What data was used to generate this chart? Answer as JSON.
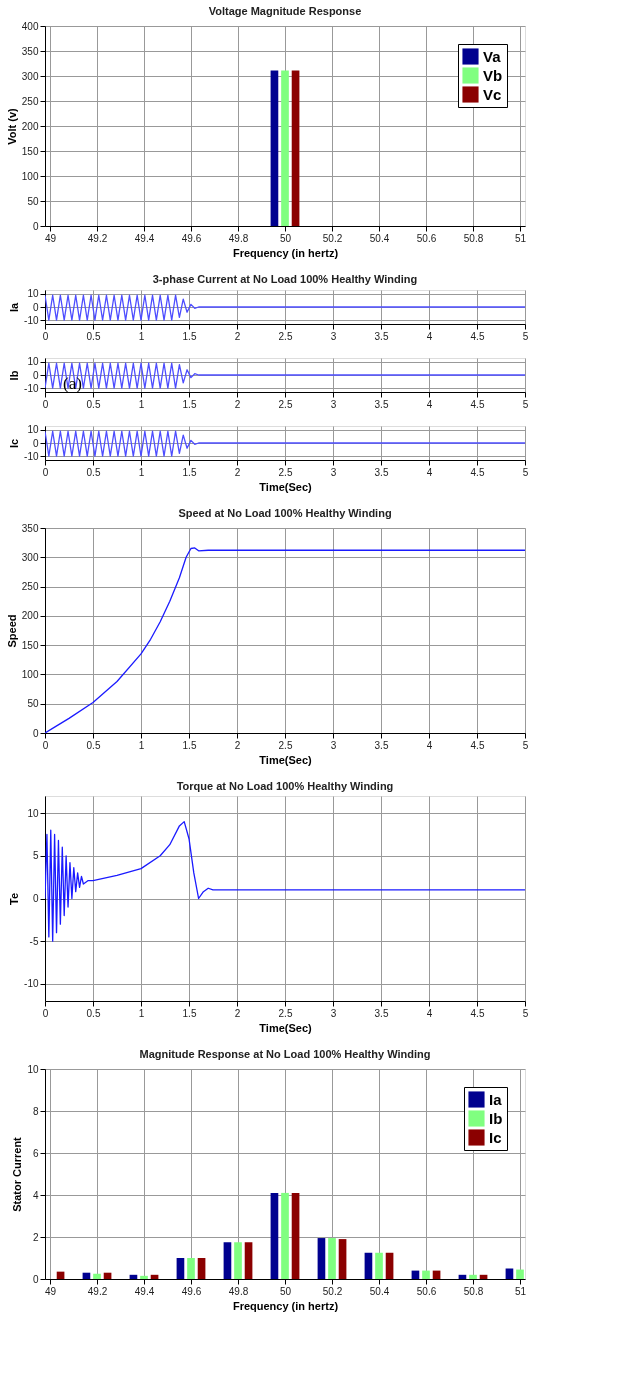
{
  "chart_data": [
    {
      "type": "bar",
      "title": "Voltage Magnitude Response",
      "xlabel": "Frequency (in hertz)",
      "ylabel": "Volt (v)",
      "x": [
        50
      ],
      "series": [
        {
          "name": "Va",
          "color": "#00008f",
          "values": [
            311
          ]
        },
        {
          "name": "Vb",
          "color": "#80ff80",
          "values": [
            311
          ]
        },
        {
          "name": "Vc",
          "color": "#8b0000",
          "values": [
            311
          ]
        }
      ],
      "xlim": [
        49,
        51
      ],
      "xticks": [
        49,
        49.2,
        49.4,
        49.6,
        49.8,
        50,
        50.2,
        50.4,
        50.6,
        50.8,
        51
      ],
      "ylim": [
        0,
        400
      ],
      "yticks": [
        0,
        50,
        100,
        150,
        200,
        250,
        300,
        350,
        400
      ],
      "grid": true,
      "legend": "top right"
    },
    {
      "type": "line",
      "title": "3-phase Current at No Load 100% Healthy Winding",
      "ylabel": "Ia",
      "series": [
        {
          "color": "#4d4dff",
          "x": [
            0,
            0.04,
            0.08,
            0.12,
            0.16,
            0.2,
            0.24,
            0.28,
            0.32,
            0.36,
            0.4,
            0.44,
            0.48,
            0.52,
            0.56,
            0.6,
            0.64,
            0.68,
            0.72,
            0.76,
            0.8,
            0.84,
            0.88,
            0.92,
            0.96,
            1,
            1.04,
            1.08,
            1.12,
            1.16,
            1.2,
            1.24,
            1.28,
            1.32,
            1.36,
            1.4,
            1.44,
            1.48,
            1.52,
            1.56,
            1.6,
            5
          ],
          "values": [
            9,
            -10,
            9,
            -10,
            9,
            -10,
            9,
            -10,
            9,
            -10,
            9,
            -10,
            9,
            -10,
            9,
            -10,
            9,
            -10,
            9,
            -10,
            9,
            -10,
            9,
            -10,
            9,
            -10,
            9,
            -10,
            9,
            -10,
            9,
            -10,
            9,
            -10,
            9,
            -8,
            6,
            -4,
            2,
            -1,
            0,
            0
          ]
        }
      ],
      "xlim": [
        0,
        5
      ],
      "xticks": [
        0,
        0.5,
        1,
        1.5,
        2,
        2.5,
        3,
        3.5,
        4,
        4.5,
        5
      ],
      "ylim": [
        -13,
        13
      ],
      "yticks": [
        -10,
        0,
        10
      ],
      "grid": true
    },
    {
      "type": "line",
      "ylabel": "Ib",
      "annotations": [
        "(a)"
      ],
      "series": [
        {
          "color": "#4d4dff",
          "x": [
            0,
            0.04,
            0.08,
            0.12,
            0.16,
            0.2,
            0.24,
            0.28,
            0.32,
            0.36,
            0.4,
            0.44,
            0.48,
            0.52,
            0.56,
            0.6,
            0.64,
            0.68,
            0.72,
            0.76,
            0.8,
            0.84,
            0.88,
            0.92,
            0.96,
            1,
            1.04,
            1.08,
            1.12,
            1.16,
            1.2,
            1.24,
            1.28,
            1.32,
            1.36,
            1.4,
            1.44,
            1.48,
            1.52,
            1.56,
            1.6,
            5
          ],
          "values": [
            -10,
            9,
            -10,
            9,
            -10,
            9,
            -10,
            9,
            -10,
            9,
            -10,
            9,
            -10,
            9,
            -10,
            9,
            -10,
            9,
            -10,
            9,
            -10,
            9,
            -10,
            9,
            -10,
            9,
            -10,
            9,
            -10,
            9,
            -10,
            9,
            -10,
            9,
            -10,
            8,
            -6,
            4,
            -2,
            1,
            0,
            0
          ]
        }
      ],
      "xlim": [
        0,
        5
      ],
      "xticks": [
        0,
        0.5,
        1,
        1.5,
        2,
        2.5,
        3,
        3.5,
        4,
        4.5,
        5
      ],
      "ylim": [
        -13,
        13
      ],
      "yticks": [
        -10,
        0,
        10
      ],
      "grid": true
    },
    {
      "type": "line",
      "xlabel": "Time(Sec)",
      "ylabel": "Ic",
      "series": [
        {
          "color": "#4d4dff",
          "x": [
            0,
            0.04,
            0.08,
            0.12,
            0.16,
            0.2,
            0.24,
            0.28,
            0.32,
            0.36,
            0.4,
            0.44,
            0.48,
            0.52,
            0.56,
            0.6,
            0.64,
            0.68,
            0.72,
            0.76,
            0.8,
            0.84,
            0.88,
            0.92,
            0.96,
            1,
            1.04,
            1.08,
            1.12,
            1.16,
            1.2,
            1.24,
            1.28,
            1.32,
            1.36,
            1.4,
            1.44,
            1.48,
            1.52,
            1.56,
            1.6,
            5
          ],
          "values": [
            9,
            -10,
            9,
            -10,
            9,
            -10,
            9,
            -10,
            9,
            -10,
            9,
            -10,
            9,
            -10,
            9,
            -10,
            9,
            -10,
            9,
            -10,
            9,
            -10,
            9,
            -10,
            9,
            -10,
            9,
            -10,
            9,
            -10,
            9,
            -10,
            9,
            -10,
            9,
            -8,
            6,
            -4,
            2,
            -1,
            0,
            0
          ]
        }
      ],
      "xlim": [
        0,
        5
      ],
      "xticks": [
        0,
        0.5,
        1,
        1.5,
        2,
        2.5,
        3,
        3.5,
        4,
        4.5,
        5
      ],
      "ylim": [
        -13,
        13
      ],
      "yticks": [
        -10,
        0,
        10
      ],
      "grid": true
    },
    {
      "type": "line",
      "title": "Speed   at No Load 100% Healthy Winding",
      "xlabel": "Time(Sec)",
      "ylabel": "Speed",
      "series": [
        {
          "color": "#1a1aff",
          "x": [
            0,
            0.1,
            0.25,
            0.5,
            0.75,
            1,
            1.1,
            1.2,
            1.3,
            1.4,
            1.47,
            1.52,
            1.56,
            1.6,
            1.7,
            5
          ],
          "values": [
            0,
            10,
            25,
            52,
            88,
            135,
            160,
            190,
            225,
            265,
            300,
            315,
            316,
            311,
            312,
            312
          ]
        }
      ],
      "xlim": [
        0,
        5
      ],
      "xticks": [
        0,
        0.5,
        1,
        1.5,
        2,
        2.5,
        3,
        3.5,
        4,
        4.5,
        5
      ],
      "ylim": [
        0,
        350
      ],
      "yticks": [
        0,
        50,
        100,
        150,
        200,
        250,
        300,
        350
      ],
      "grid": true
    },
    {
      "type": "line",
      "title": "Torque   at No Load 100% Healthy Winding",
      "xlabel": "Time(Sec)",
      "ylabel": "Te",
      "series": [
        {
          "color": "#1a1aff",
          "x": [
            0,
            0.02,
            0.04,
            0.06,
            0.08,
            0.1,
            0.12,
            0.14,
            0.16,
            0.18,
            0.2,
            0.22,
            0.24,
            0.26,
            0.28,
            0.3,
            0.32,
            0.34,
            0.36,
            0.38,
            0.4,
            0.45,
            0.5,
            0.75,
            1,
            1.2,
            1.3,
            1.4,
            1.45,
            1.5,
            1.55,
            1.6,
            1.65,
            1.7,
            1.75,
            5
          ],
          "values": [
            0,
            7.5,
            -4.5,
            8,
            -5,
            7.5,
            -4,
            6.8,
            -3,
            6,
            -2,
            5,
            -1,
            4.2,
            0,
            3.6,
            0.8,
            3,
            1.3,
            2.6,
            1.7,
            2.1,
            2.1,
            2.7,
            3.5,
            5,
            6.3,
            8.5,
            9,
            7,
            3,
            0,
            0.8,
            1.2,
            1,
            1
          ]
        }
      ],
      "xlim": [
        0,
        5
      ],
      "xticks": [
        0,
        0.5,
        1,
        1.5,
        2,
        2.5,
        3,
        3.5,
        4,
        4.5,
        5
      ],
      "ylim": [
        -12,
        12
      ],
      "yticks": [
        -10,
        -5,
        0,
        5,
        10
      ],
      "grid": true
    },
    {
      "type": "bar",
      "title": "Magnitude Response at No Load 100% Healthy Winding",
      "xlabel": "Frequency (in hertz)",
      "ylabel": "Stator Current",
      "x": [
        49,
        49.2,
        49.4,
        49.6,
        49.8,
        50,
        50.2,
        50.4,
        50.6,
        50.8,
        51
      ],
      "series": [
        {
          "name": "Ia",
          "color": "#00008f",
          "values": [
            null,
            0.3,
            0.2,
            1.0,
            1.75,
            4.1,
            1.95,
            1.25,
            0.4,
            0.2,
            0.5
          ]
        },
        {
          "name": "Ib",
          "color": "#80ff80",
          "values": [
            null,
            0.25,
            0.15,
            1.0,
            1.75,
            4.1,
            1.95,
            1.25,
            0.4,
            0.2,
            0.45
          ]
        },
        {
          "name": "Ic",
          "color": "#8b0000",
          "values": [
            0.35,
            0.3,
            0.2,
            1.0,
            1.75,
            4.1,
            1.9,
            1.25,
            0.4,
            0.2,
            null
          ]
        }
      ],
      "xlim": [
        49,
        51
      ],
      "xticks": [
        49,
        49.2,
        49.4,
        49.6,
        49.8,
        50,
        50.2,
        50.4,
        50.6,
        50.8,
        51
      ],
      "ylim": [
        0,
        10
      ],
      "yticks": [
        0,
        2,
        4,
        6,
        8,
        10
      ],
      "grid": true,
      "legend": "top right"
    }
  ]
}
